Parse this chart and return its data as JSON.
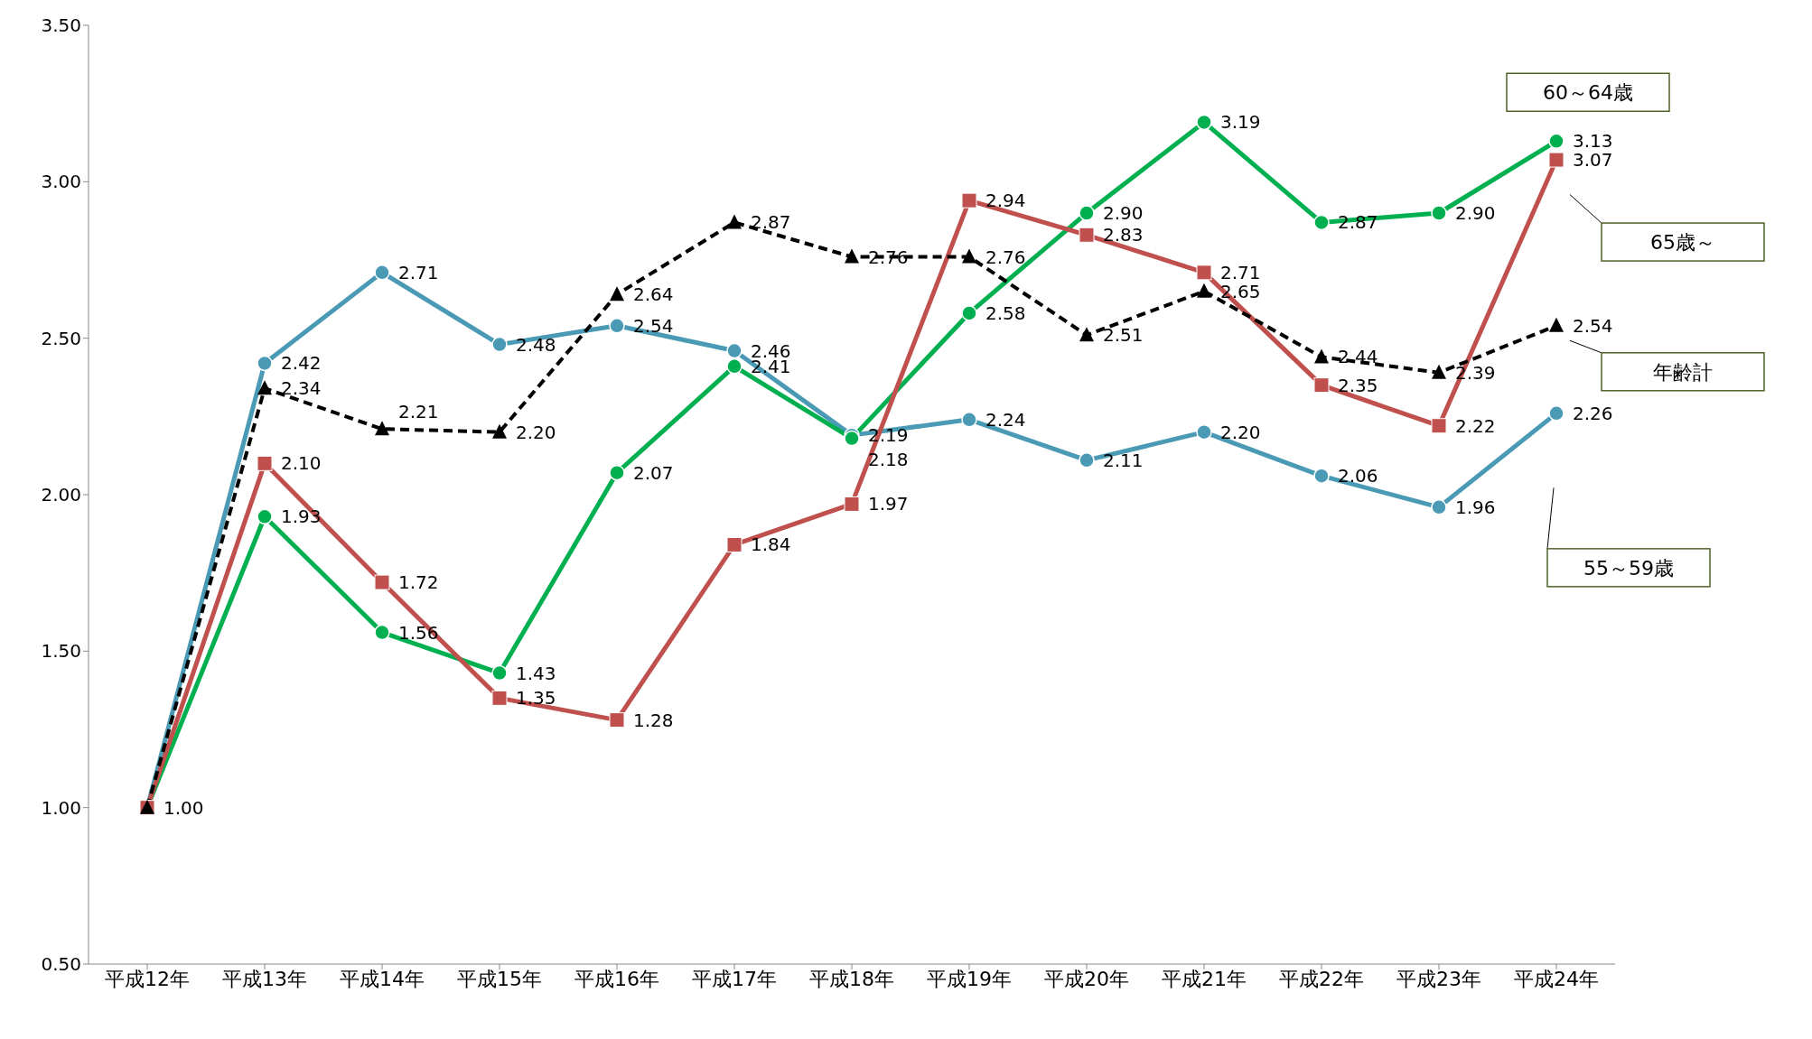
{
  "chart_data": {
    "type": "line",
    "categories": [
      "平成12年",
      "平成13年",
      "平成14年",
      "平成15年",
      "平成16年",
      "平成17年",
      "平成18年",
      "平成19年",
      "平成20年",
      "平成21年",
      "平成22年",
      "平成23年",
      "平成24年"
    ],
    "series": [
      {
        "name": "55～59歳",
        "color": "#4a9ab5",
        "marker": "circle",
        "line_style": "solid",
        "values": [
          1.0,
          2.42,
          2.71,
          2.48,
          2.54,
          2.46,
          2.19,
          2.24,
          2.11,
          2.2,
          2.06,
          1.96,
          2.26
        ],
        "value_labels": [
          "1.00",
          "2.42",
          "2.71",
          "2.48",
          "2.54",
          "2.46",
          "2.19",
          "2.24",
          "2.11",
          "2.20",
          "2.06",
          "1.96",
          "2.26"
        ]
      },
      {
        "name": "60～64歳",
        "color": "#00b050",
        "marker": "circle",
        "line_style": "solid",
        "values": [
          1.0,
          1.93,
          1.56,
          1.43,
          2.07,
          2.41,
          2.18,
          2.58,
          2.9,
          3.19,
          2.87,
          2.9,
          3.13
        ],
        "value_labels": [
          null,
          "1.93",
          "1.56",
          "1.43",
          "2.07",
          "2.41",
          "2.18",
          "2.58",
          "2.90",
          "3.19",
          "2.87",
          "2.90",
          "3.13"
        ]
      },
      {
        "name": "65歳～",
        "color": "#c0504d",
        "marker": "square",
        "line_style": "solid",
        "values": [
          1.0,
          2.1,
          1.72,
          1.35,
          1.28,
          1.84,
          1.97,
          2.94,
          2.83,
          2.71,
          2.35,
          2.22,
          3.07
        ],
        "value_labels": [
          null,
          "2.10",
          "1.72",
          "1.35",
          "1.28",
          "1.84",
          "1.97",
          "2.94",
          "2.83",
          "2.71",
          "2.35",
          "2.22",
          "3.07"
        ]
      },
      {
        "name": "年齢計",
        "color": "#000000",
        "marker": "triangle",
        "line_style": "dashed",
        "values": [
          1.0,
          2.34,
          2.21,
          2.2,
          2.64,
          2.87,
          2.76,
          2.76,
          2.51,
          2.65,
          2.44,
          2.39,
          2.54
        ],
        "value_labels": [
          null,
          "2.34",
          "2.21",
          "2.20",
          "2.64",
          "2.87",
          "2.76",
          "2.76",
          "2.51",
          "2.65",
          "2.44",
          "2.39",
          "2.54"
        ]
      }
    ],
    "ylim": [
      0.5,
      3.5
    ],
    "yticks": [
      {
        "value": 0.5,
        "label": "0.50"
      },
      {
        "value": 1,
        "label": "1.00"
      },
      {
        "value": 1.5,
        "label": "1.50"
      },
      {
        "value": 2,
        "label": "2.00"
      },
      {
        "value": 2.5,
        "label": "2.50"
      },
      {
        "value": 3,
        "label": "3.00"
      },
      {
        "value": 3.5,
        "label": "3.50"
      }
    ],
    "grid": false,
    "legend": false
  }
}
